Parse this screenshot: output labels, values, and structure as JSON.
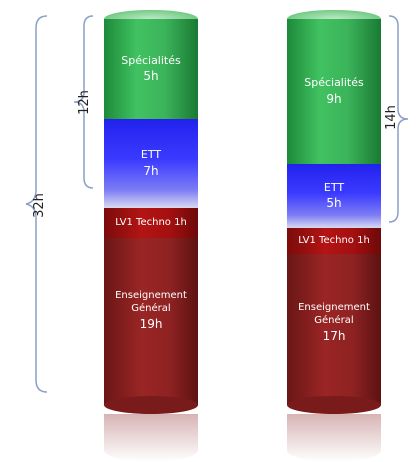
{
  "braces": {
    "total_left": "32h",
    "upper_left": "12h",
    "upper_right": "14h"
  },
  "left_column": {
    "specialites": {
      "name": "Spécialités",
      "hours": "5h"
    },
    "ett": {
      "name": "ETT",
      "hours": "7h"
    },
    "lv1": {
      "label": "LV1 Techno 1h"
    },
    "general": {
      "name_line1": "Enseignement",
      "name_line2": "Général",
      "hours": "19h"
    }
  },
  "right_column": {
    "specialites": {
      "name": "Spécialités",
      "hours": "9h"
    },
    "ett": {
      "name": "ETT",
      "hours": "5h"
    },
    "lv1": {
      "label": "LV1 Techno 1h"
    },
    "general": {
      "name_line1": "Enseignement",
      "name_line2": "Général",
      "hours": "17h"
    }
  },
  "colors": {
    "specialites": "#3bb35a",
    "ett": "#3a3aff",
    "lv1": "#b31414",
    "general": "#9a2525"
  }
}
